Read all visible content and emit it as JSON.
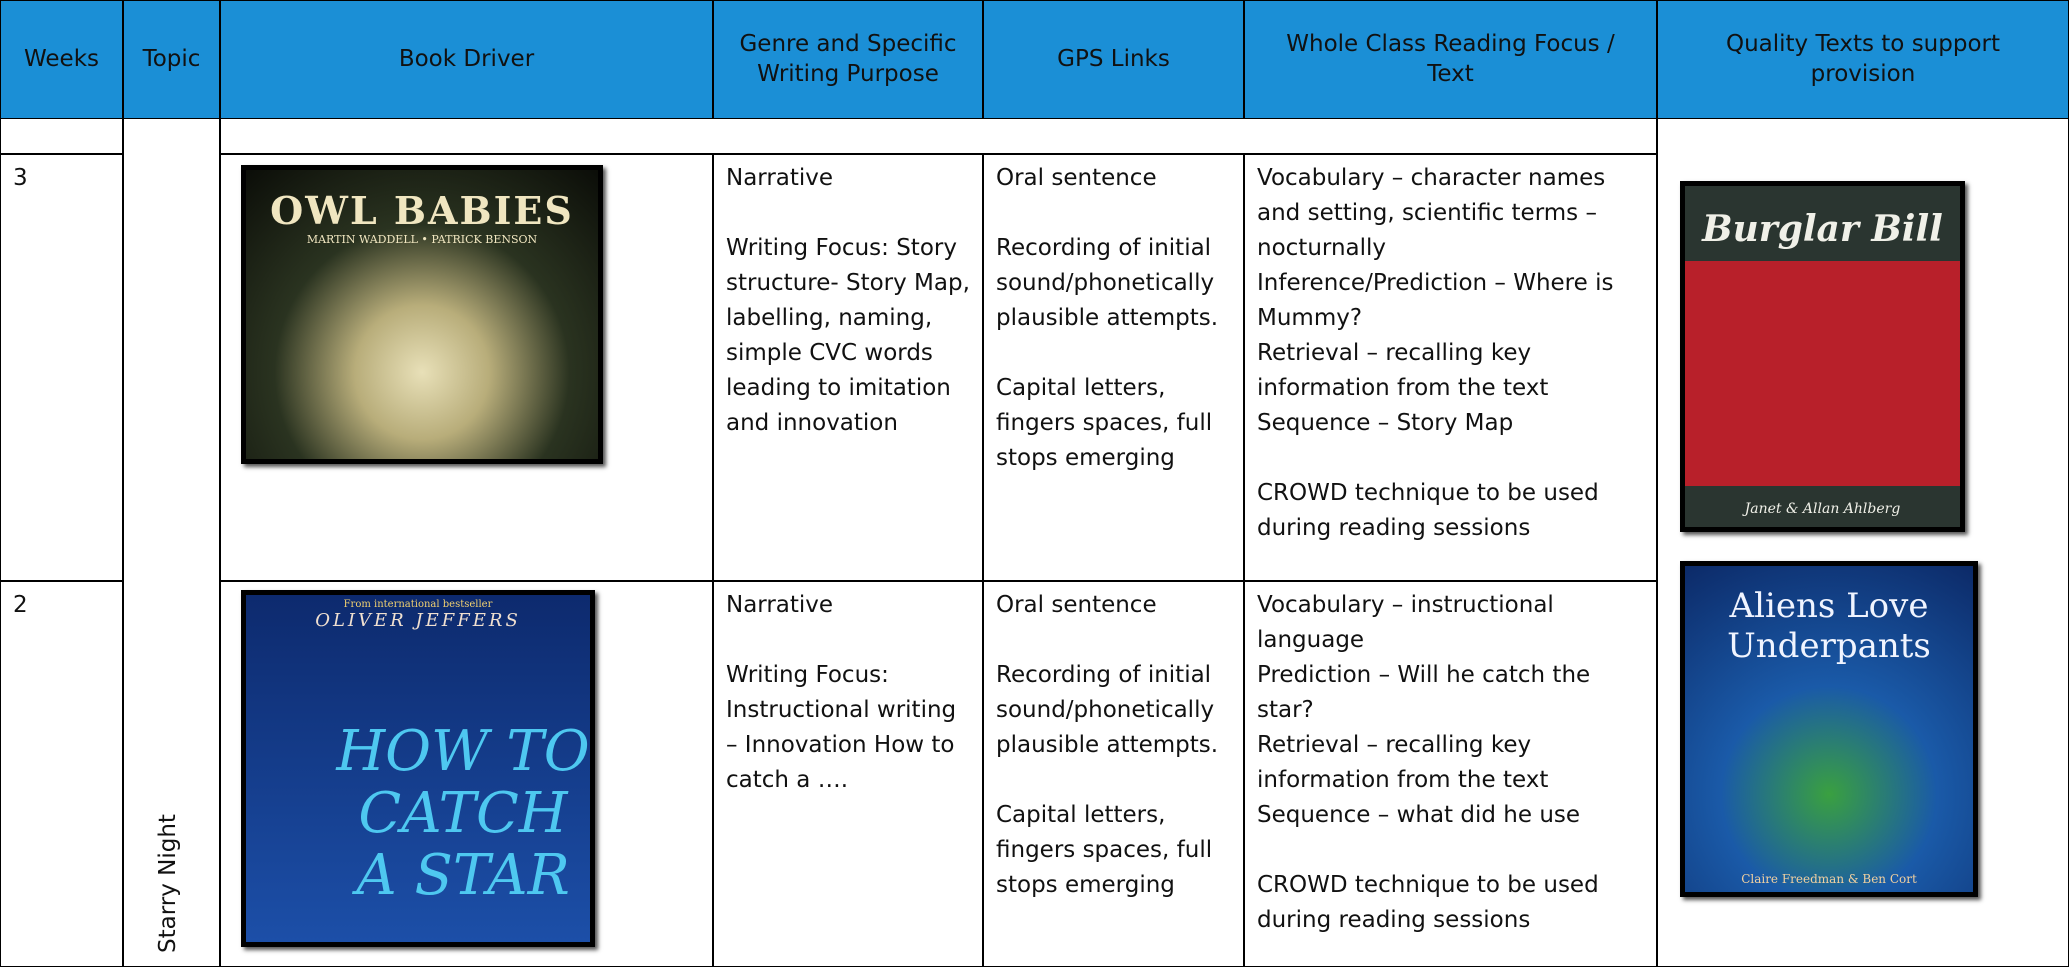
{
  "header": {
    "columns": [
      "Weeks",
      "Topic",
      "Book Driver",
      "Genre and Specific Writing Purpose",
      "GPS Links",
      "Whole Class Reading Focus / Text",
      "Quality Texts to support provision"
    ]
  },
  "topic": "Starry Night",
  "rows": [
    {
      "week": "3",
      "book_driver": {
        "title": "Owl Babies",
        "authors": "Martin Waddell • Patrick Benson"
      },
      "genre": [
        [
          "Narrative"
        ],
        [
          "Writing Focus: Story structure- Story Map, labelling, naming, simple CVC words leading to imitation and innovation"
        ]
      ],
      "gps": [
        [
          "Oral sentence"
        ],
        [
          "Recording of initial sound/phonetically plausible attempts."
        ],
        [
          "Capital letters, fingers spaces, full stops emerging"
        ]
      ],
      "reading": [
        [
          "Vocabulary – character names and setting, scientific terms – nocturnally",
          "Inference/Prediction – Where is Mummy?",
          "Retrieval – recalling key information from the text",
          "Sequence – Story Map"
        ],
        [
          "CROWD technique to be used during reading sessions"
        ]
      ],
      "quality_text": {
        "title": "Burglar Bill",
        "authors": "Janet & Allan Ahlberg"
      }
    },
    {
      "week": "2",
      "book_driver": {
        "tagline": "From international bestseller",
        "authors": "Oliver Jeffers",
        "title": "How to Catch a Star"
      },
      "genre": [
        [
          "Narrative"
        ],
        [
          "Writing Focus: Instructional writing – Innovation How to catch a …."
        ]
      ],
      "gps": [
        [
          "Oral sentence"
        ],
        [
          "Recording of initial sound/phonetically plausible attempts."
        ],
        [
          "Capital letters, fingers spaces, full stops emerging"
        ]
      ],
      "reading": [
        [
          "Vocabulary – instructional language",
          "Prediction – Will he catch the star?",
          "Retrieval – recalling key information from the text",
          "Sequence – what did he use"
        ],
        [
          "CROWD technique to be used during reading sessions"
        ]
      ],
      "quality_text": {
        "title": "Aliens Love Underpants",
        "authors": "Claire Freedman & Ben Cort"
      }
    }
  ]
}
